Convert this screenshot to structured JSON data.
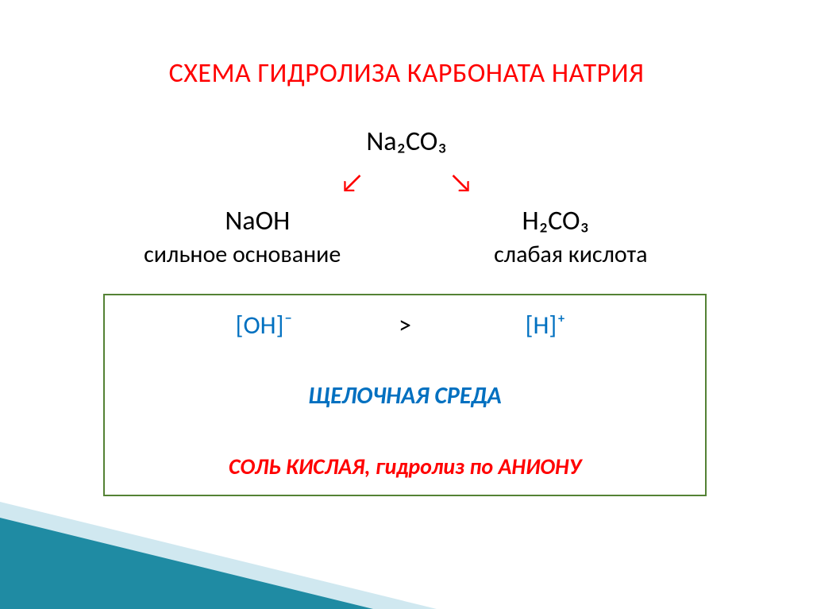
{
  "colors": {
    "title": "#ff0000",
    "text": "#000000",
    "arrows": "#ff0000",
    "box_border": "#548235",
    "ion": "#0070c0",
    "env": "#0070c0",
    "salt": "#ff0000",
    "triangle_light": "#a9d6e4",
    "triangle_dark": "#1f8ba3"
  },
  "title": "СХЕМА ГИДРОЛИЗА КАРБОНАТА НАТРИЯ",
  "formula_top": "Na₂CO₃",
  "arrow_left": "↙",
  "arrow_right": "↘",
  "branch_left": "NaOH",
  "branch_right": "H₂CO₃",
  "desc_left": "сильное основание",
  "desc_right": "слабая кислота",
  "ion_oh": "[OH]⁻",
  "ion_gt": ">",
  "ion_h": "[H]⁺",
  "env": "ЩЕЛОЧНАЯ СРЕДА",
  "salt": "СОЛЬ   КИСЛАЯ,    гидролиз   по  АНИОНУ"
}
